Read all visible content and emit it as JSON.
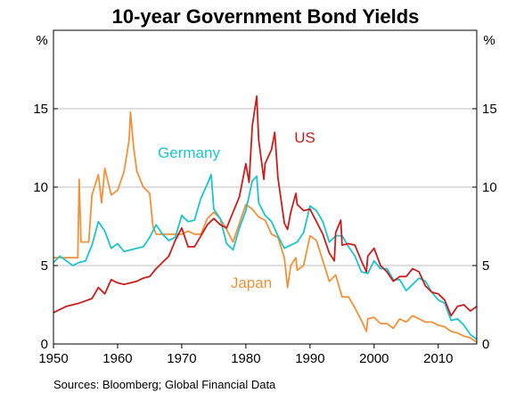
{
  "chart_data": {
    "type": "line",
    "title": "10-year Government Bond Yields",
    "y_unit_left": "%",
    "y_unit_right": "%",
    "xlim": [
      1950,
      2016
    ],
    "ylim": [
      0,
      20
    ],
    "x_ticks": [
      1950,
      1960,
      1970,
      1980,
      1990,
      2000,
      2010
    ],
    "y_ticks": [
      0,
      5,
      10,
      15
    ],
    "grid": "horizontal",
    "source": "Sources:  Bloomberg; Global Financial Data",
    "series": [
      {
        "name": "US",
        "color": "#c81e1e",
        "x": [
          1950,
          1952,
          1954,
          1956,
          1957,
          1958,
          1959,
          1960,
          1961,
          1962,
          1963,
          1964,
          1965,
          1966,
          1967,
          1968,
          1969,
          1970,
          1971,
          1972,
          1973,
          1974,
          1975,
          1976,
          1977,
          1978,
          1979,
          1980,
          1980.5,
          1981,
          1981.7,
          1982,
          1982.8,
          1983,
          1984,
          1984.5,
          1985,
          1986,
          1986.5,
          1987,
          1987.8,
          1988,
          1989,
          1990,
          1991,
          1992,
          1993,
          1993.8,
          1994,
          1994.8,
          1995,
          1996,
          1997,
          1998,
          1998.8,
          1999,
          2000,
          2001,
          2002,
          2003,
          2004,
          2005,
          2006,
          2007,
          2008,
          2009,
          2010,
          2011,
          2012,
          2013,
          2014,
          2015,
          2016
        ],
        "y": [
          2.0,
          2.4,
          2.6,
          2.9,
          3.6,
          3.2,
          4.1,
          3.9,
          3.8,
          3.9,
          4.0,
          4.2,
          4.3,
          4.8,
          5.2,
          5.6,
          6.6,
          7.4,
          6.2,
          6.2,
          6.9,
          7.6,
          8.0,
          7.6,
          7.4,
          8.4,
          9.4,
          11.5,
          10.3,
          13.9,
          15.8,
          13.0,
          10.5,
          11.5,
          12.4,
          13.5,
          10.6,
          7.7,
          7.3,
          8.4,
          9.6,
          8.9,
          8.5,
          8.6,
          7.8,
          7.0,
          5.8,
          5.3,
          7.1,
          7.9,
          6.3,
          6.4,
          6.3,
          5.3,
          4.6,
          5.6,
          6.1,
          5.0,
          4.6,
          4.0,
          4.3,
          4.3,
          4.8,
          4.6,
          3.7,
          3.3,
          3.2,
          2.8,
          1.8,
          2.4,
          2.5,
          2.1,
          2.4
        ]
      },
      {
        "name": "Germany",
        "color": "#1ec4cc",
        "x": [
          1950,
          1951,
          1952,
          1953,
          1954,
          1955,
          1956,
          1957,
          1958,
          1959,
          1960,
          1961,
          1962,
          1963,
          1964,
          1965,
          1966,
          1967,
          1968,
          1969,
          1970,
          1971,
          1972,
          1973,
          1974,
          1974.6,
          1975,
          1976,
          1977,
          1978,
          1979,
          1980,
          1981,
          1981.7,
          1982,
          1983,
          1984,
          1985,
          1986,
          1987,
          1988,
          1989,
          1990,
          1991,
          1992,
          1993,
          1994,
          1995,
          1996,
          1997,
          1998,
          1999,
          2000,
          2001,
          2002,
          2003,
          2004,
          2005,
          2006,
          2007,
          2008,
          2009,
          2010,
          2011,
          2012,
          2013,
          2014,
          2015,
          2016
        ],
        "y": [
          5.2,
          5.6,
          5.3,
          5.0,
          5.2,
          5.3,
          6.3,
          7.8,
          7.2,
          6.1,
          6.4,
          5.9,
          6.0,
          6.1,
          6.2,
          6.8,
          7.6,
          7.0,
          6.6,
          6.8,
          8.2,
          7.8,
          7.9,
          9.3,
          10.2,
          10.8,
          8.6,
          8.0,
          6.4,
          6.0,
          7.4,
          8.5,
          10.4,
          10.7,
          9.0,
          8.2,
          7.8,
          6.9,
          6.1,
          6.3,
          6.5,
          7.1,
          8.8,
          8.5,
          7.8,
          6.5,
          6.9,
          6.9,
          6.2,
          5.6,
          4.6,
          4.5,
          5.3,
          4.8,
          4.8,
          4.1,
          4.1,
          3.4,
          3.8,
          4.2,
          4.0,
          3.3,
          2.8,
          2.6,
          1.5,
          1.6,
          1.2,
          0.6,
          0.3
        ]
      },
      {
        "name": "Japan",
        "color": "#f0923c",
        "x": [
          1950,
          1952,
          1953.8,
          1954,
          1954.3,
          1955,
          1955.5,
          1956,
          1957,
          1957.5,
          1958,
          1959,
          1960,
          1961,
          1961.8,
          1962,
          1962.5,
          1963,
          1964,
          1965,
          1965.5,
          1966,
          1967,
          1968,
          1969,
          1970,
          1971,
          1972,
          1973,
          1974,
          1975,
          1976,
          1977,
          1978,
          1979,
          1980,
          1981,
          1982,
          1983,
          1984,
          1985,
          1986,
          1986.5,
          1987,
          1987.8,
          1988,
          1989,
          1990,
          1991,
          1992,
          1993,
          1994,
          1995,
          1996,
          1997,
          1998,
          1998.8,
          1999,
          2000,
          2001,
          2002,
          2003,
          2004,
          2005,
          2006,
          2007,
          2008,
          2009,
          2010,
          2011,
          2012,
          2013,
          2014,
          2015,
          2016
        ],
        "y": [
          5.5,
          5.5,
          5.5,
          10.5,
          6.5,
          6.5,
          6.5,
          9.5,
          10.8,
          9.0,
          11.2,
          9.5,
          9.8,
          11.0,
          13.0,
          14.8,
          12.5,
          11.0,
          10.0,
          9.6,
          7.5,
          7.0,
          7.0,
          7.0,
          7.0,
          7.0,
          7.2,
          7.0,
          7.0,
          8.0,
          8.4,
          8.0,
          7.3,
          6.5,
          7.7,
          8.9,
          8.6,
          8.1,
          7.9,
          7.0,
          6.8,
          5.5,
          3.6,
          5.0,
          5.5,
          4.7,
          5.0,
          6.9,
          6.6,
          5.3,
          4.0,
          4.4,
          3.0,
          3.0,
          2.3,
          1.5,
          0.8,
          1.6,
          1.7,
          1.3,
          1.3,
          1.0,
          1.6,
          1.4,
          1.8,
          1.6,
          1.4,
          1.4,
          1.2,
          1.1,
          0.8,
          0.7,
          0.5,
          0.4,
          0.1
        ]
      }
    ]
  }
}
